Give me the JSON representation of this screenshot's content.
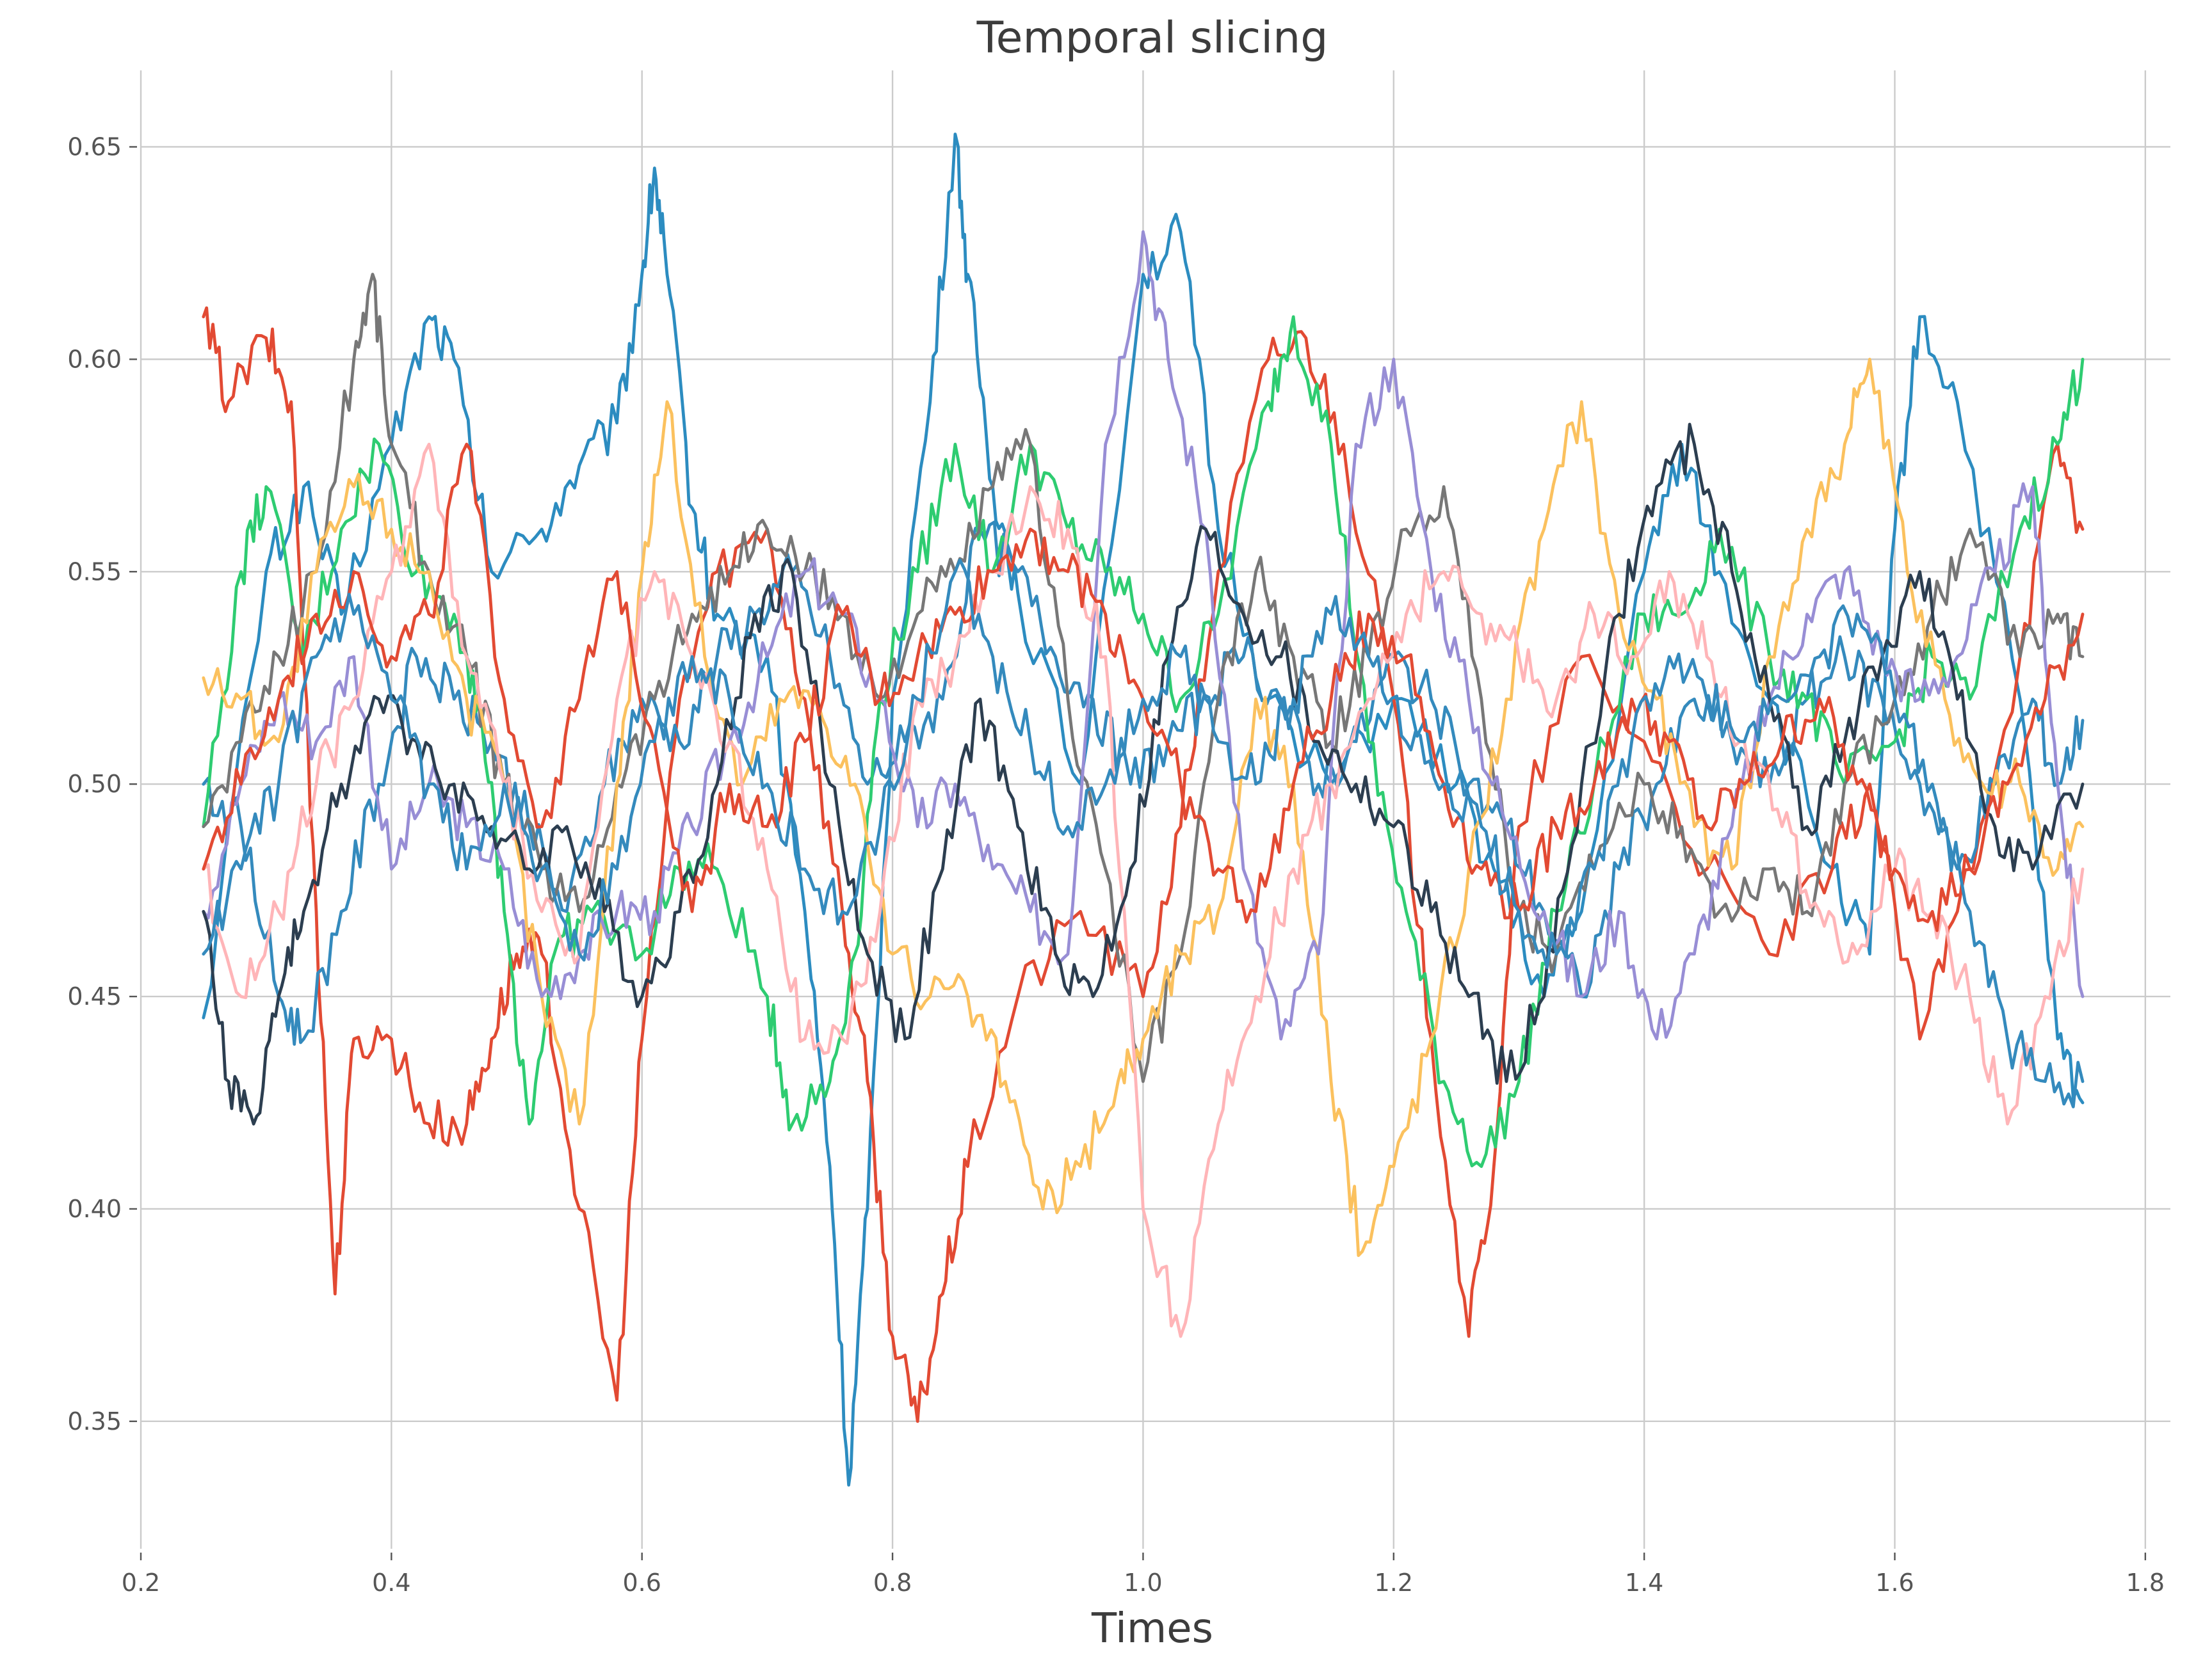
{
  "chart_data": {
    "type": "line",
    "title": "Temporal slicing",
    "xlabel": "Times",
    "ylabel": "",
    "xlim": [
      0.2,
      1.82
    ],
    "ylim": [
      0.32,
      0.668
    ],
    "xticks": [
      "0.2",
      "0.4",
      "0.6",
      "0.8",
      "1.0",
      "1.2",
      "1.4",
      "1.6",
      "1.8"
    ],
    "xtick_values": [
      0.2,
      0.4,
      0.6,
      0.8,
      1.0,
      1.2,
      1.4,
      1.6,
      1.8
    ],
    "yticks": [
      "0.35",
      "0.40",
      "0.45",
      "0.50",
      "0.55",
      "0.60",
      "0.65"
    ],
    "ytick_values": [
      0.35,
      0.4,
      0.45,
      0.5,
      0.55,
      0.6,
      0.65
    ],
    "grid": true,
    "legend": "none",
    "series": [
      {
        "color": "#2c8cc0",
        "x": [
          0.25,
          0.3,
          0.33,
          0.36,
          0.4,
          0.43,
          0.45,
          0.48,
          0.52,
          0.55,
          0.58,
          0.6,
          0.61,
          0.62,
          0.64,
          0.66,
          0.7,
          0.73,
          0.75,
          0.765,
          0.78,
          0.8,
          0.83,
          0.85,
          0.86,
          0.88,
          0.9,
          0.95,
          1.0,
          1.03,
          1.06,
          1.1,
          1.15,
          1.2,
          1.25,
          1.28,
          1.32,
          1.35,
          1.4,
          1.43,
          1.46,
          1.5,
          1.55,
          1.58,
          1.6,
          1.62,
          1.65,
          1.7,
          1.73,
          1.75
        ],
        "y": [
          0.445,
          0.55,
          0.57,
          0.54,
          0.58,
          0.61,
          0.6,
          0.55,
          0.56,
          0.575,
          0.585,
          0.62,
          0.645,
          0.62,
          0.565,
          0.54,
          0.53,
          0.47,
          0.41,
          0.335,
          0.4,
          0.52,
          0.59,
          0.653,
          0.62,
          0.57,
          0.545,
          0.5,
          0.62,
          0.63,
          0.56,
          0.52,
          0.5,
          0.52,
          0.5,
          0.48,
          0.45,
          0.47,
          0.55,
          0.58,
          0.55,
          0.52,
          0.48,
          0.46,
          0.56,
          0.61,
          0.59,
          0.52,
          0.44,
          0.425
        ]
      },
      {
        "color": "#e24a33",
        "x": [
          0.25,
          0.27,
          0.3,
          0.32,
          0.34,
          0.355,
          0.37,
          0.4,
          0.43,
          0.46,
          0.48,
          0.5,
          0.52,
          0.55,
          0.58,
          0.6,
          0.63,
          0.66,
          0.7,
          0.73,
          0.76,
          0.78,
          0.8,
          0.82,
          0.84,
          0.86,
          0.9,
          0.95,
          1.0,
          1.03,
          1.06,
          1.1,
          1.13,
          1.16,
          1.2,
          1.23,
          1.26,
          1.28,
          1.3,
          1.35,
          1.4,
          1.45,
          1.5,
          1.55,
          1.58,
          1.62,
          1.65,
          1.7,
          1.73,
          1.75
        ],
        "y": [
          0.61,
          0.59,
          0.605,
          0.59,
          0.47,
          0.38,
          0.44,
          0.44,
          0.42,
          0.42,
          0.44,
          0.46,
          0.46,
          0.4,
          0.355,
          0.44,
          0.52,
          0.55,
          0.56,
          0.52,
          0.47,
          0.43,
          0.37,
          0.35,
          0.38,
          0.41,
          0.45,
          0.47,
          0.45,
          0.49,
          0.55,
          0.6,
          0.605,
          0.58,
          0.52,
          0.44,
          0.37,
          0.41,
          0.49,
          0.53,
          0.51,
          0.48,
          0.46,
          0.48,
          0.5,
          0.44,
          0.47,
          0.53,
          0.58,
          0.56
        ]
      },
      {
        "color": "#348abd",
        "x": [
          0.25,
          0.28,
          0.31,
          0.33,
          0.36,
          0.39,
          0.42,
          0.45,
          0.48,
          0.51,
          0.54,
          0.57,
          0.6,
          0.63,
          0.66,
          0.69,
          0.72,
          0.75,
          0.78,
          0.81,
          0.84,
          0.87,
          0.9,
          0.93,
          0.96,
          0.99,
          1.02,
          1.05,
          1.08,
          1.11,
          1.14,
          1.17,
          1.2,
          1.23,
          1.26,
          1.29,
          1.32,
          1.35,
          1.38,
          1.41,
          1.44,
          1.47,
          1.5,
          1.53,
          1.56,
          1.59,
          1.62,
          1.65,
          1.68,
          1.71,
          1.73,
          1.75
        ],
        "y": [
          0.5,
          0.49,
          0.45,
          0.44,
          0.47,
          0.5,
          0.53,
          0.52,
          0.51,
          0.49,
          0.47,
          0.5,
          0.52,
          0.51,
          0.53,
          0.54,
          0.55,
          0.53,
          0.5,
          0.51,
          0.52,
          0.56,
          0.55,
          0.53,
          0.52,
          0.5,
          0.51,
          0.52,
          0.53,
          0.52,
          0.5,
          0.51,
          0.53,
          0.52,
          0.5,
          0.49,
          0.47,
          0.45,
          0.48,
          0.5,
          0.52,
          0.51,
          0.5,
          0.52,
          0.53,
          0.52,
          0.5,
          0.48,
          0.5,
          0.52,
          0.5,
          0.515
        ]
      },
      {
        "color": "#2ecc71",
        "x": [
          0.25,
          0.28,
          0.3,
          0.33,
          0.36,
          0.39,
          0.42,
          0.45,
          0.47,
          0.49,
          0.51,
          0.53,
          0.56,
          0.6,
          0.63,
          0.66,
          0.7,
          0.72,
          0.75,
          0.77,
          0.79,
          0.82,
          0.85,
          0.88,
          0.91,
          0.94,
          0.97,
          1.0,
          1.03,
          1.06,
          1.1,
          1.12,
          1.15,
          1.18,
          1.21,
          1.24,
          1.27,
          1.3,
          1.33,
          1.36,
          1.4,
          1.43,
          1.46,
          1.5,
          1.53,
          1.56,
          1.6,
          1.63,
          1.66,
          1.7,
          1.73,
          1.75
        ],
        "y": [
          0.49,
          0.55,
          0.57,
          0.53,
          0.56,
          0.58,
          0.55,
          0.54,
          0.52,
          0.47,
          0.42,
          0.46,
          0.47,
          0.46,
          0.48,
          0.48,
          0.45,
          0.42,
          0.43,
          0.46,
          0.52,
          0.55,
          0.58,
          0.55,
          0.58,
          0.56,
          0.55,
          0.54,
          0.52,
          0.54,
          0.59,
          0.61,
          0.58,
          0.51,
          0.47,
          0.43,
          0.41,
          0.43,
          0.47,
          0.5,
          0.54,
          0.54,
          0.56,
          0.53,
          0.52,
          0.5,
          0.51,
          0.53,
          0.52,
          0.56,
          0.58,
          0.6
        ]
      },
      {
        "color": "#777777",
        "x": [
          0.25,
          0.28,
          0.31,
          0.34,
          0.37,
          0.385,
          0.4,
          0.43,
          0.46,
          0.49,
          0.52,
          0.55,
          0.58,
          0.61,
          0.64,
          0.67,
          0.7,
          0.73,
          0.76,
          0.79,
          0.82,
          0.85,
          0.88,
          0.91,
          0.94,
          0.97,
          1.0,
          1.03,
          1.06,
          1.09,
          1.12,
          1.15,
          1.18,
          1.21,
          1.24,
          1.27,
          1.3,
          1.33,
          1.36,
          1.4,
          1.43,
          1.46,
          1.5,
          1.53,
          1.56,
          1.6,
          1.63,
          1.66,
          1.7,
          1.73,
          1.75
        ],
        "y": [
          0.49,
          0.51,
          0.53,
          0.55,
          0.6,
          0.62,
          0.58,
          0.55,
          0.53,
          0.5,
          0.48,
          0.47,
          0.5,
          0.52,
          0.54,
          0.55,
          0.56,
          0.55,
          0.54,
          0.52,
          0.54,
          0.55,
          0.57,
          0.58,
          0.52,
          0.48,
          0.43,
          0.46,
          0.52,
          0.55,
          0.53,
          0.51,
          0.53,
          0.56,
          0.57,
          0.52,
          0.47,
          0.46,
          0.48,
          0.5,
          0.49,
          0.47,
          0.48,
          0.47,
          0.5,
          0.52,
          0.54,
          0.56,
          0.53,
          0.54,
          0.53
        ]
      },
      {
        "color": "#fbc15e",
        "x": [
          0.25,
          0.28,
          0.31,
          0.34,
          0.37,
          0.4,
          0.43,
          0.46,
          0.49,
          0.52,
          0.55,
          0.58,
          0.6,
          0.62,
          0.65,
          0.68,
          0.71,
          0.74,
          0.77,
          0.8,
          0.83,
          0.86,
          0.89,
          0.92,
          0.95,
          0.98,
          1.0,
          1.03,
          1.06,
          1.09,
          1.12,
          1.15,
          1.175,
          1.2,
          1.23,
          1.26,
          1.29,
          1.32,
          1.35,
          1.38,
          1.41,
          1.44,
          1.47,
          1.5,
          1.53,
          1.56,
          1.58,
          1.61,
          1.64,
          1.67,
          1.7,
          1.73,
          1.75
        ],
        "y": [
          0.525,
          0.52,
          0.51,
          0.55,
          0.57,
          0.56,
          0.55,
          0.52,
          0.5,
          0.45,
          0.42,
          0.5,
          0.55,
          0.59,
          0.53,
          0.5,
          0.52,
          0.52,
          0.5,
          0.46,
          0.45,
          0.45,
          0.43,
          0.4,
          0.41,
          0.43,
          0.44,
          0.46,
          0.47,
          0.52,
          0.5,
          0.43,
          0.39,
          0.41,
          0.44,
          0.48,
          0.52,
          0.56,
          0.59,
          0.54,
          0.52,
          0.49,
          0.48,
          0.53,
          0.56,
          0.58,
          0.6,
          0.55,
          0.52,
          0.5,
          0.5,
          0.48,
          0.49
        ]
      },
      {
        "color": "#988ed5",
        "x": [
          0.25,
          0.28,
          0.31,
          0.34,
          0.37,
          0.4,
          0.43,
          0.46,
          0.49,
          0.52,
          0.55,
          0.58,
          0.61,
          0.64,
          0.67,
          0.7,
          0.73,
          0.76,
          0.79,
          0.82,
          0.85,
          0.88,
          0.91,
          0.94,
          0.97,
          1.0,
          1.02,
          1.05,
          1.08,
          1.11,
          1.14,
          1.17,
          1.2,
          1.23,
          1.26,
          1.29,
          1.32,
          1.35,
          1.38,
          1.41,
          1.44,
          1.47,
          1.5,
          1.53,
          1.56,
          1.59,
          1.62,
          1.65,
          1.68,
          1.71,
          1.73,
          1.75
        ],
        "y": [
          0.47,
          0.5,
          0.52,
          0.51,
          0.53,
          0.48,
          0.5,
          0.49,
          0.48,
          0.45,
          0.46,
          0.47,
          0.47,
          0.49,
          0.51,
          0.53,
          0.55,
          0.54,
          0.52,
          0.49,
          0.5,
          0.48,
          0.47,
          0.46,
          0.58,
          0.63,
          0.6,
          0.56,
          0.48,
          0.44,
          0.46,
          0.58,
          0.6,
          0.55,
          0.52,
          0.49,
          0.47,
          0.45,
          0.47,
          0.44,
          0.46,
          0.49,
          0.52,
          0.54,
          0.55,
          0.53,
          0.52,
          0.53,
          0.55,
          0.57,
          0.5,
          0.45
        ]
      },
      {
        "color": "#ffb5b8",
        "x": [
          0.25,
          0.28,
          0.31,
          0.34,
          0.37,
          0.4,
          0.43,
          0.46,
          0.49,
          0.52,
          0.55,
          0.58,
          0.61,
          0.64,
          0.67,
          0.7,
          0.73,
          0.76,
          0.79,
          0.82,
          0.85,
          0.88,
          0.91,
          0.94,
          0.97,
          1.0,
          1.03,
          1.06,
          1.09,
          1.12,
          1.15,
          1.18,
          1.21,
          1.24,
          1.27,
          1.3,
          1.33,
          1.36,
          1.39,
          1.42,
          1.45,
          1.48,
          1.51,
          1.54,
          1.57,
          1.6,
          1.63,
          1.66,
          1.69,
          1.72,
          1.75
        ],
        "y": [
          0.48,
          0.45,
          0.47,
          0.5,
          0.52,
          0.55,
          0.58,
          0.53,
          0.5,
          0.47,
          0.46,
          0.52,
          0.55,
          0.53,
          0.51,
          0.48,
          0.44,
          0.44,
          0.47,
          0.52,
          0.53,
          0.55,
          0.57,
          0.56,
          0.53,
          0.4,
          0.37,
          0.42,
          0.45,
          0.48,
          0.5,
          0.52,
          0.54,
          0.55,
          0.54,
          0.53,
          0.52,
          0.54,
          0.53,
          0.55,
          0.53,
          0.51,
          0.49,
          0.47,
          0.46,
          0.48,
          0.47,
          0.45,
          0.42,
          0.45,
          0.48
        ]
      },
      {
        "color": "#2c3e50",
        "x": [
          0.25,
          0.27,
          0.29,
          0.31,
          0.33,
          0.36,
          0.39,
          0.42,
          0.45,
          0.48,
          0.51,
          0.54,
          0.57,
          0.6,
          0.63,
          0.66,
          0.69,
          0.72,
          0.75,
          0.78,
          0.81,
          0.84,
          0.87,
          0.9,
          0.93,
          0.96,
          0.99,
          1.02,
          1.05,
          1.08,
          1.11,
          1.14,
          1.17,
          1.2,
          1.23,
          1.26,
          1.29,
          1.32,
          1.35,
          1.38,
          1.41,
          1.44,
          1.47,
          1.5,
          1.53,
          1.56,
          1.59,
          1.62,
          1.65,
          1.68,
          1.71,
          1.75
        ],
        "y": [
          0.47,
          0.43,
          0.42,
          0.45,
          0.47,
          0.5,
          0.52,
          0.51,
          0.5,
          0.49,
          0.48,
          0.49,
          0.47,
          0.45,
          0.47,
          0.5,
          0.54,
          0.55,
          0.5,
          0.46,
          0.44,
          0.48,
          0.52,
          0.49,
          0.46,
          0.45,
          0.48,
          0.53,
          0.56,
          0.54,
          0.53,
          0.51,
          0.5,
          0.49,
          0.47,
          0.45,
          0.43,
          0.45,
          0.5,
          0.54,
          0.57,
          0.58,
          0.55,
          0.52,
          0.49,
          0.51,
          0.53,
          0.55,
          0.52,
          0.49,
          0.48,
          0.5
        ]
      },
      {
        "color": "#e24a33",
        "x": [
          0.25,
          0.28,
          0.31,
          0.34,
          0.37,
          0.4,
          0.43,
          0.46,
          0.49,
          0.52,
          0.55,
          0.58,
          0.61,
          0.64,
          0.67,
          0.7,
          0.73,
          0.76,
          0.79,
          0.82,
          0.85,
          0.88,
          0.91,
          0.94,
          0.97,
          1.0,
          1.03,
          1.06,
          1.09,
          1.12,
          1.15,
          1.18,
          1.21,
          1.24,
          1.27,
          1.3,
          1.33,
          1.36,
          1.39,
          1.42,
          1.45,
          1.48,
          1.51,
          1.54,
          1.57,
          1.6,
          1.63,
          1.66,
          1.69,
          1.72,
          1.75
        ],
        "y": [
          0.48,
          0.5,
          0.52,
          0.54,
          0.55,
          0.53,
          0.54,
          0.58,
          0.52,
          0.49,
          0.52,
          0.55,
          0.51,
          0.47,
          0.5,
          0.49,
          0.51,
          0.54,
          0.52,
          0.53,
          0.54,
          0.55,
          0.56,
          0.55,
          0.54,
          0.52,
          0.5,
          0.48,
          0.47,
          0.5,
          0.52,
          0.54,
          0.53,
          0.5,
          0.48,
          0.47,
          0.49,
          0.5,
          0.52,
          0.51,
          0.49,
          0.5,
          0.51,
          0.52,
          0.5,
          0.48,
          0.47,
          0.48,
          0.5,
          0.52,
          0.54
        ]
      },
      {
        "color": "#348abd",
        "x": [
          0.25,
          0.28,
          0.31,
          0.34,
          0.37,
          0.4,
          0.43,
          0.46,
          0.49,
          0.52,
          0.55,
          0.58,
          0.61,
          0.64,
          0.67,
          0.7,
          0.73,
          0.76,
          0.79,
          0.82,
          0.85,
          0.88,
          0.91,
          0.94,
          0.97,
          1.0,
          1.03,
          1.06,
          1.09,
          1.12,
          1.15,
          1.18,
          1.21,
          1.24,
          1.27,
          1.3,
          1.33,
          1.36,
          1.39,
          1.42,
          1.45,
          1.48,
          1.51,
          1.54,
          1.57,
          1.6,
          1.63,
          1.66,
          1.69,
          1.72,
          1.75
        ],
        "y": [
          0.46,
          0.48,
          0.5,
          0.53,
          0.54,
          0.52,
          0.5,
          0.48,
          0.5,
          0.48,
          0.46,
          0.48,
          0.51,
          0.53,
          0.52,
          0.5,
          0.48,
          0.47,
          0.49,
          0.52,
          0.55,
          0.53,
          0.51,
          0.49,
          0.5,
          0.52,
          0.53,
          0.51,
          0.5,
          0.52,
          0.54,
          0.53,
          0.51,
          0.5,
          0.49,
          0.47,
          0.46,
          0.48,
          0.51,
          0.53,
          0.52,
          0.51,
          0.52,
          0.53,
          0.54,
          0.52,
          0.5,
          0.47,
          0.44,
          0.43,
          0.43
        ]
      }
    ]
  }
}
